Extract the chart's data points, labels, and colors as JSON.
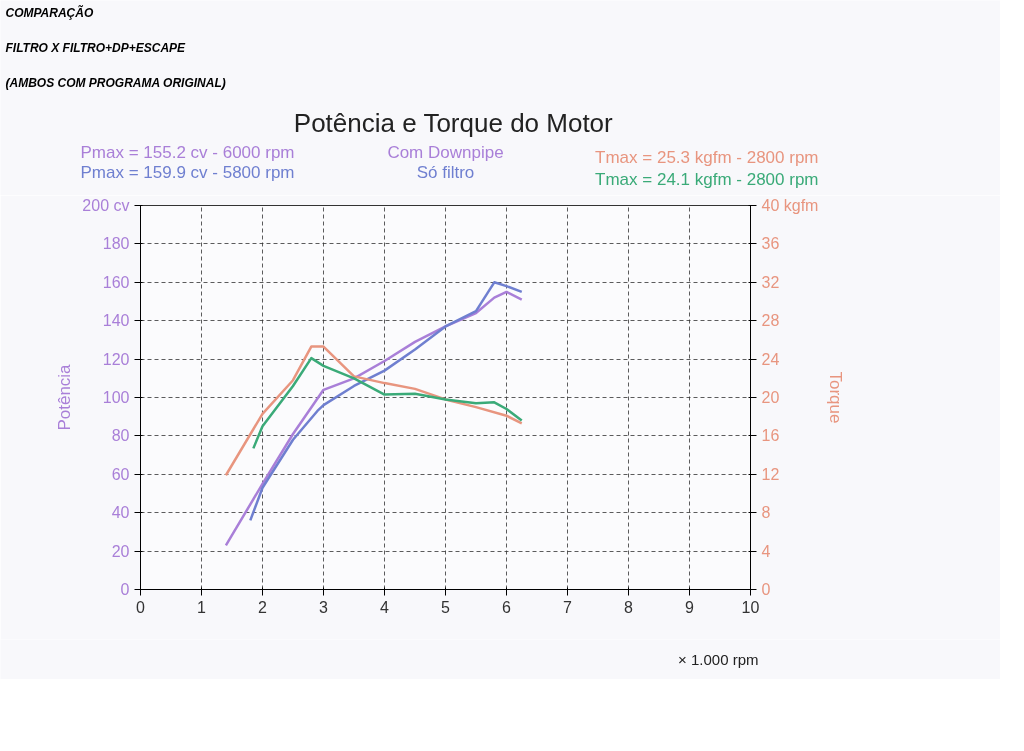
{
  "chart_data": {
    "type": "line",
    "title": "Potência e Torque do Motor",
    "xlabel": "× 1.000 rpm",
    "ylabel": "Potência",
    "y2label": "Torque",
    "annotations": [
      "COMPARAÇÃO",
      "FILTRO X FILTRO+DP+ESCAPE",
      "(AMBOS COM PROGRAMA ORIGINAL)",
      "Pmax = 155.2 cv - 6000 rpm",
      "Pmax = 159.9 cv - 5800 rpm",
      "Tmax = 25.3 kgfm - 2800 rpm",
      "Tmax = 24.1 kgfm - 2800 rpm"
    ],
    "series": [
      {
        "name": "Com Downpipe",
        "color": "#a97fd8",
        "x": [
          1.4,
          2,
          2.5,
          3,
          3.5,
          4,
          4.5,
          5,
          5.5,
          5.8,
          6,
          6.25
        ],
        "values": [
          23,
          55,
          81,
          104,
          110,
          119,
          129,
          137,
          144,
          152,
          155,
          151
        ]
      },
      {
        "name": "Só filtro",
        "color": "#6f7fd0",
        "x": [
          1.8,
          2,
          2.5,
          2.9,
          3,
          3.5,
          4,
          4.5,
          5,
          5.5,
          5.8,
          6,
          6.25
        ],
        "values": [
          36,
          53,
          78,
          93,
          96,
          106,
          114,
          125,
          137,
          145,
          160,
          158,
          155
        ]
      },
      {
        "color": "#e8957f",
        "axis": "y2",
        "x": [
          1.4,
          2,
          2.5,
          2.8,
          3,
          3.5,
          4,
          4.5,
          5,
          5.5,
          6,
          6.25
        ],
        "values": [
          11.9,
          18.3,
          21.8,
          25.3,
          25.3,
          22.2,
          21.5,
          20.9,
          19.8,
          19.0,
          18.1,
          17.3
        ]
      },
      {
        "color": "#3aaa78",
        "axis": "y2",
        "x": [
          1.85,
          2,
          2.5,
          2.8,
          3,
          3.5,
          4,
          4.5,
          5,
          5.5,
          5.8,
          6,
          6.25
        ],
        "values": [
          14.7,
          17,
          21.2,
          24.1,
          23.3,
          22,
          20.3,
          20.4,
          19.8,
          19.4,
          19.5,
          18.8,
          17.6
        ]
      }
    ],
    "xlim": [
      0,
      10
    ],
    "xticks": [
      0,
      1,
      2,
      3,
      4,
      5,
      6,
      7,
      8,
      9,
      10
    ],
    "ylim": [
      0,
      200
    ],
    "yticks": [
      0,
      20,
      40,
      60,
      80,
      100,
      120,
      140,
      160,
      180,
      {
        "value": 200,
        "label": "200 cv"
      }
    ],
    "y2lim": [
      0,
      40
    ],
    "y2ticks": [
      0,
      4,
      8,
      12,
      16,
      20,
      24,
      28,
      32,
      36,
      {
        "value": 40,
        "label": "40 kgfm"
      }
    ],
    "grid": true,
    "line_style": "solid",
    "marker": "none"
  }
}
